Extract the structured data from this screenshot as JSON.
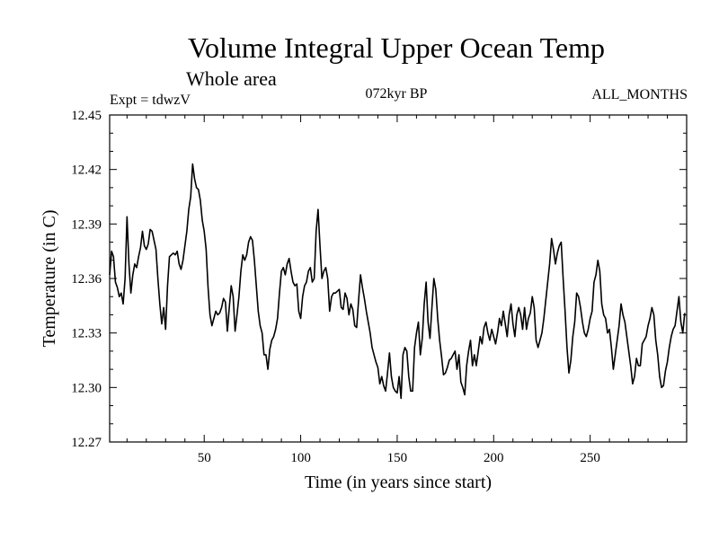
{
  "chart_data": {
    "type": "line",
    "title": "Volume Integral Upper Ocean Temp",
    "subtitle": "Whole area",
    "annotations": {
      "left": "Expt = tdwzV",
      "center": "072kyr BP",
      "right": "ALL_MONTHS"
    },
    "xlabel": "Time (in years since start)",
    "ylabel": "Temperature (in C)",
    "xlim": [
      1,
      300
    ],
    "ylim": [
      12.27,
      12.45
    ],
    "x_ticks": [
      50,
      100,
      150,
      200,
      250
    ],
    "y_ticks": [
      "12.27",
      "12.30",
      "12.33",
      "12.36",
      "12.39",
      "12.42",
      "12.45"
    ],
    "grid": false,
    "series": [
      {
        "x_start": 1,
        "x_step": 1,
        "values": [
          12.362,
          12.375,
          12.372,
          12.358,
          12.355,
          12.35,
          12.352,
          12.346,
          12.36,
          12.394,
          12.368,
          12.352,
          12.362,
          12.368,
          12.366,
          12.372,
          12.377,
          12.386,
          12.378,
          12.376,
          12.379,
          12.387,
          12.386,
          12.381,
          12.376,
          12.36,
          12.346,
          12.335,
          12.344,
          12.332,
          12.356,
          12.372,
          12.373,
          12.374,
          12.373,
          12.375,
          12.368,
          12.365,
          12.37,
          12.378,
          12.386,
          12.398,
          12.405,
          12.423,
          12.415,
          12.41,
          12.409,
          12.403,
          12.392,
          12.386,
          12.376,
          12.355,
          12.34,
          12.334,
          12.338,
          12.342,
          12.34,
          12.341,
          12.344,
          12.349,
          12.347,
          12.331,
          12.344,
          12.356,
          12.35,
          12.331,
          12.34,
          12.35,
          12.364,
          12.373,
          12.37,
          12.373,
          12.38,
          12.383,
          12.381,
          12.37,
          12.356,
          12.342,
          12.334,
          12.33,
          12.318,
          12.318,
          12.31,
          12.321,
          12.326,
          12.328,
          12.332,
          12.338,
          12.352,
          12.364,
          12.366,
          12.362,
          12.368,
          12.371,
          12.364,
          12.358,
          12.356,
          12.357,
          12.342,
          12.338,
          12.35,
          12.356,
          12.358,
          12.364,
          12.366,
          12.358,
          12.36,
          12.386,
          12.398,
          12.378,
          12.36,
          12.364,
          12.366,
          12.36,
          12.342,
          12.35,
          12.352,
          12.352,
          12.353,
          12.354,
          12.344,
          12.343,
          12.352,
          12.349,
          12.34,
          12.346,
          12.343,
          12.334,
          12.333,
          12.348,
          12.362,
          12.355,
          12.349,
          12.342,
          12.336,
          12.33,
          12.322,
          12.318,
          12.314,
          12.311,
          12.302,
          12.306,
          12.301,
          12.298,
          12.308,
          12.319,
          12.306,
          12.3,
          12.298,
          12.297,
          12.306,
          12.294,
          12.318,
          12.322,
          12.32,
          12.306,
          12.298,
          12.298,
          12.322,
          12.33,
          12.336,
          12.318,
          12.327,
          12.346,
          12.358,
          12.336,
          12.327,
          12.344,
          12.36,
          12.354,
          12.338,
          12.326,
          12.317,
          12.307,
          12.308,
          12.311,
          12.315,
          12.316,
          12.318,
          12.32,
          12.31,
          12.318,
          12.303,
          12.3,
          12.296,
          12.312,
          12.32,
          12.326,
          12.312,
          12.318,
          12.312,
          12.32,
          12.328,
          12.324,
          12.333,
          12.336,
          12.33,
          12.326,
          12.332,
          12.328,
          12.324,
          12.33,
          12.338,
          12.334,
          12.342,
          12.335,
          12.328,
          12.34,
          12.346,
          12.335,
          12.328,
          12.34,
          12.344,
          12.34,
          12.332,
          12.344,
          12.332,
          12.338,
          12.341,
          12.35,
          12.344,
          12.326,
          12.322,
          12.326,
          12.33,
          12.338,
          12.348,
          12.358,
          12.368,
          12.382,
          12.376,
          12.368,
          12.374,
          12.378,
          12.38,
          12.36,
          12.342,
          12.322,
          12.308,
          12.315,
          12.328,
          12.336,
          12.352,
          12.35,
          12.344,
          12.336,
          12.33,
          12.328,
          12.332,
          12.338,
          12.342,
          12.358,
          12.362,
          12.37,
          12.364,
          12.346,
          12.34,
          12.338,
          12.33,
          12.332,
          12.322,
          12.31,
          12.318,
          12.326,
          12.334,
          12.346,
          12.34,
          12.336,
          12.328,
          12.32,
          12.312,
          12.302,
          12.306,
          12.316,
          12.312,
          12.312,
          12.324,
          12.326,
          12.328,
          12.334,
          12.338,
          12.344,
          12.34,
          12.326,
          12.318,
          12.306,
          12.3,
          12.301,
          12.309,
          12.314,
          12.322,
          12.328,
          12.332,
          12.334,
          12.342,
          12.35,
          12.336,
          12.33,
          12.341
        ]
      }
    ]
  }
}
